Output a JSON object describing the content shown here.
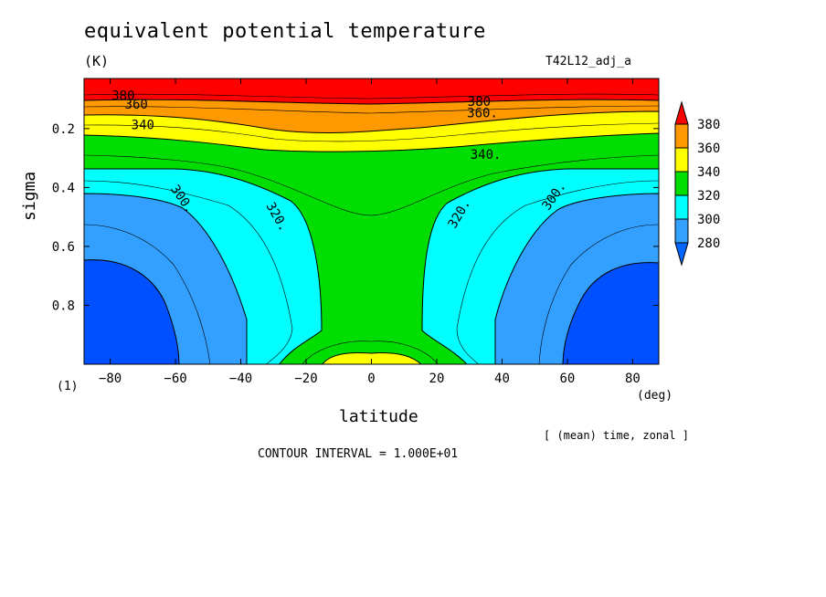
{
  "header": {
    "title": "equivalent potential temperature",
    "units": "(K)",
    "run": "T42L12_adj_a"
  },
  "axes": {
    "xlabel": "latitude",
    "xunit": "(deg)",
    "ylabel": "sigma",
    "yextra": "(1)"
  },
  "footer": {
    "averaging": "[ (mean) time, zonal ]",
    "contour_interval": "CONTOUR INTERVAL = 1.000E+01"
  },
  "chart_data": {
    "type": "heatmap",
    "title": "equivalent potential temperature",
    "units": "(K)",
    "xlabel": "latitude",
    "ylabel": "sigma",
    "xlim": [
      -88,
      88
    ],
    "ylim": [
      1.0,
      0.03
    ],
    "x_ticks": [
      -80,
      -60,
      -40,
      -20,
      0,
      20,
      40,
      60,
      80
    ],
    "y_ticks": [
      0.2,
      0.4,
      0.6,
      0.8
    ],
    "contour_levels": [
      280,
      290,
      300,
      310,
      320,
      330,
      340,
      350,
      360,
      370,
      380
    ],
    "contour_labels": [
      {
        "text": "380",
        "x": -76,
        "y": 0.09
      },
      {
        "text": "360",
        "x": -72,
        "y": 0.12
      },
      {
        "text": "340",
        "x": -70,
        "y": 0.19
      },
      {
        "text": "300.",
        "x": -58,
        "y": 0.44
      },
      {
        "text": "320.",
        "x": -29,
        "y": 0.5
      },
      {
        "text": "380",
        "x": 33,
        "y": 0.11
      },
      {
        "text": "360.",
        "x": 34,
        "y": 0.15
      },
      {
        "text": "340.",
        "x": 35,
        "y": 0.29
      },
      {
        "text": "320.",
        "x": 27,
        "y": 0.49
      },
      {
        "text": "300.",
        "x": 56,
        "y": 0.43
      }
    ],
    "colorbar": {
      "levels": [
        280,
        300,
        320,
        340,
        360,
        380
      ],
      "colors": [
        "#0066ff",
        "#33a0ff",
        "#00ffff",
        "#00dd00",
        "#ffff00",
        "#ff9900",
        "#ff0000"
      ]
    },
    "fill_colors": {
      "below_280": "#0050ff",
      "280_300": "#33a0ff",
      "300_320": "#00ffff",
      "320_340": "#00dd00",
      "340_360": "#ffff00",
      "360_380": "#ff9900",
      "above_380": "#ff0000"
    }
  }
}
